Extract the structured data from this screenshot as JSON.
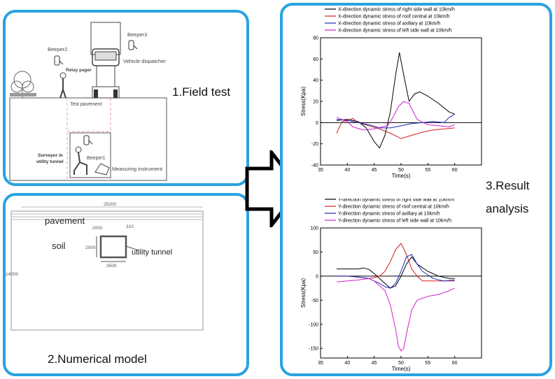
{
  "field_test": {
    "title": "1.Field test",
    "labels": {
      "beeper2": "Beeper2",
      "relay_pager": "Relay pager",
      "beeper3": "Beeper3",
      "vehicle_dispatcher": "Vehicle dispatcher",
      "test_pavement": "Test pavement",
      "surveyor_line1": "Surveyor in",
      "surveyor_line2": "utility tunnel",
      "beeper1": "Beeper1",
      "measuring_instrument": "Measuring instrument"
    }
  },
  "numerical_model": {
    "title": "2.Numerical model",
    "labels": {
      "pavement": "pavement",
      "soil": "soil",
      "utility_tunnel": "utility tunnel",
      "dim_total_width": "25200",
      "dim_depth": "2000",
      "dim_small": "310",
      "dim_height": "2000",
      "dim_width": "3500",
      "dim_side": "14000"
    }
  },
  "result_analysis": {
    "title_line1": "3.Result",
    "title_line2": "analysis"
  },
  "chart_data": [
    {
      "type": "line",
      "xlabel": "Time(s)",
      "ylabel": "Stress(Kpa)",
      "xlim": [
        35,
        65
      ],
      "ylim": [
        -40,
        80
      ],
      "xticks": [
        35,
        40,
        45,
        50,
        55,
        60
      ],
      "yticks": [
        -40,
        -20,
        0,
        20,
        40,
        60,
        80
      ],
      "legend": "top-center",
      "series": [
        {
          "name": "X-direction dynamic stress of right side wall at 10km/h",
          "color": "#000000",
          "x": [
            38,
            40,
            42,
            43.5,
            45,
            46,
            47,
            48,
            49,
            49.7,
            50.5,
            51.5,
            52.5,
            53.5,
            55,
            57,
            59,
            60
          ],
          "y": [
            2,
            3,
            1,
            -5,
            -18,
            -24,
            -12,
            10,
            45,
            66,
            45,
            20,
            27,
            29,
            25,
            18,
            10,
            8
          ]
        },
        {
          "name": "X-direction dynamic stress of roof central at 10km/h",
          "color": "#d02020",
          "x": [
            38,
            39,
            40,
            41,
            42,
            44,
            46,
            48,
            50,
            52,
            54,
            56,
            58,
            60
          ],
          "y": [
            -10,
            1,
            2,
            4,
            0,
            -3,
            -6,
            -10,
            -15,
            -12,
            -9,
            -7,
            -6,
            -5
          ]
        },
        {
          "name": "X-direction dynamic stress of axillary at 10km/h",
          "color": "#1a2bb8",
          "x": [
            38,
            40,
            42,
            44,
            46,
            48,
            50,
            52,
            54,
            56,
            58,
            59,
            60
          ],
          "y": [
            3,
            2,
            0,
            -2,
            -5,
            -5,
            -3,
            -1,
            0,
            1,
            0,
            5,
            8
          ]
        },
        {
          "name": "X-direction dynamic stress of left side wall at 10km/h",
          "color": "#d020d0",
          "x": [
            38,
            39,
            40,
            41,
            43,
            45,
            46.5,
            47.5,
            48.5,
            49.5,
            50.5,
            51.5,
            53,
            55,
            57,
            59,
            60
          ],
          "y": [
            5,
            3,
            1,
            -4,
            -7,
            -6,
            -4,
            -3,
            5,
            15,
            20,
            18,
            3,
            -2,
            -3,
            -4,
            -2
          ]
        }
      ]
    },
    {
      "type": "line",
      "xlabel": "Time(s)",
      "ylabel": "Stress(Kpa)",
      "xlim": [
        35,
        65
      ],
      "ylim": [
        -170,
        100
      ],
      "xticks": [
        35,
        40,
        45,
        50,
        55,
        60
      ],
      "yticks": [
        -150,
        -100,
        -50,
        0,
        50,
        100
      ],
      "legend": "top-center",
      "series": [
        {
          "name": "Y-direction dynamic stress of right side wall at 10km/h",
          "color": "#000000",
          "x": [
            38,
            40,
            42,
            43,
            44,
            45,
            46,
            47,
            48,
            49,
            50,
            51,
            52,
            53,
            55,
            57,
            59,
            60
          ],
          "y": [
            15,
            15,
            15,
            17,
            14,
            5,
            -5,
            -15,
            -25,
            -20,
            0,
            25,
            40,
            25,
            10,
            0,
            -5,
            -5
          ]
        },
        {
          "name": "Y-direction dynamic stress of roof central at 10km/h",
          "color": "#d02020",
          "x": [
            38,
            40,
            42,
            44,
            45,
            46,
            47,
            48,
            49,
            50,
            51,
            52,
            53,
            54,
            56,
            58,
            60
          ],
          "y": [
            0,
            0,
            -2,
            -5,
            -3,
            0,
            10,
            30,
            55,
            68,
            45,
            15,
            0,
            -10,
            -10,
            -10,
            -10
          ]
        },
        {
          "name": "Y-direction dynamic stress of axillary at 10km/h",
          "color": "#1a2bb8",
          "x": [
            38,
            40,
            42,
            44,
            46,
            47,
            48,
            49,
            50,
            51,
            52,
            53,
            54,
            56,
            58,
            60
          ],
          "y": [
            0,
            0,
            -2,
            -5,
            -15,
            -22,
            -25,
            -15,
            10,
            40,
            45,
            25,
            10,
            -5,
            -10,
            -8
          ]
        },
        {
          "name": "Y-direction dynamic stress of left side wall at 10km/h",
          "color": "#d020d0",
          "x": [
            38,
            40,
            42,
            44,
            45,
            46,
            47,
            48,
            49,
            49.5,
            50,
            50.5,
            51,
            52,
            53,
            55,
            57,
            59,
            60
          ],
          "y": [
            -12,
            -10,
            -8,
            -5,
            -10,
            -20,
            -30,
            -60,
            -110,
            -145,
            -155,
            -150,
            -120,
            -70,
            -50,
            -42,
            -38,
            -30,
            -25
          ]
        }
      ]
    }
  ]
}
